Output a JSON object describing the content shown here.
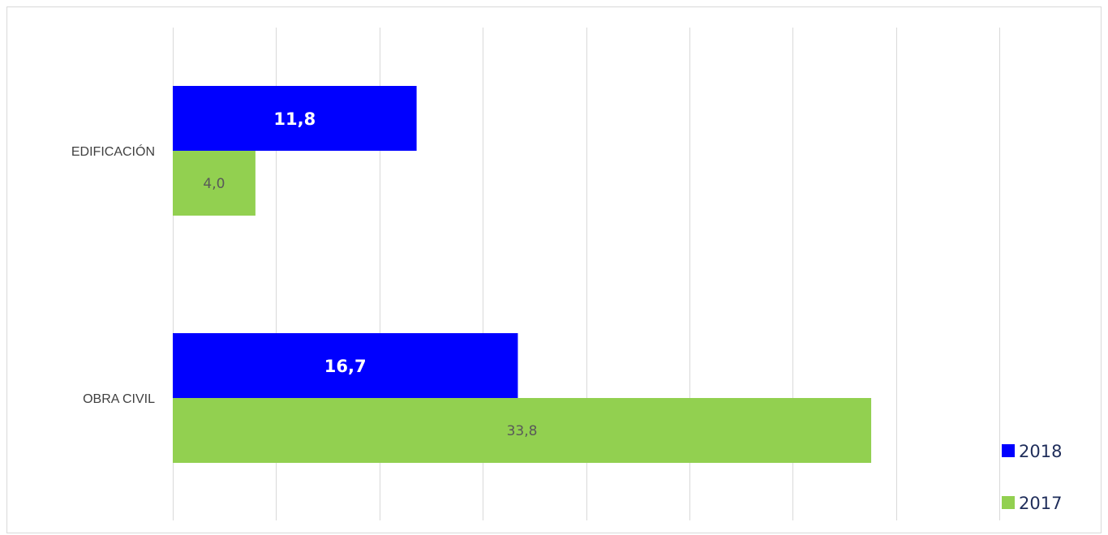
{
  "chart_data": {
    "type": "bar",
    "orientation": "horizontal",
    "categories": [
      "EDIFICACIÓN",
      "OBRA CIVIL"
    ],
    "series": [
      {
        "name": "2018",
        "values": [
          11.8,
          16.7
        ],
        "labels": [
          "11,8",
          "16,7"
        ],
        "color": "#0000ff"
      },
      {
        "name": "2017",
        "values": [
          4.0,
          33.8
        ],
        "labels": [
          "4,0",
          "33,8"
        ],
        "color": "#92d050"
      }
    ],
    "xlim": [
      0,
      40
    ],
    "grid": true,
    "legend_position": "bottom-right"
  }
}
